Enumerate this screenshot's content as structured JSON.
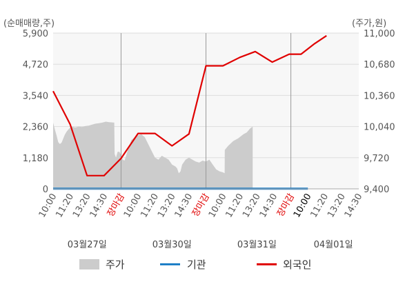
{
  "chart_data": {
    "type": "line",
    "left_axis_unit": "(순매매량,주)",
    "right_axis_unit": "(주가,원)",
    "left_ylim": [
      0,
      5900
    ],
    "right_ylim": [
      9400,
      11000
    ],
    "left_ticks": [
      "0",
      "1,180",
      "2,360",
      "3,540",
      "4,720",
      "5,900"
    ],
    "right_ticks": [
      "9,400",
      "9,720",
      "10,040",
      "10,360",
      "10,680",
      "11,000"
    ],
    "x_ticks": [
      "10:00",
      "11:20",
      "13:20",
      "14:30",
      "장마감",
      "10:00",
      "11:20",
      "13:20",
      "14:30",
      "장마감",
      "10:00",
      "11:20",
      "13:20",
      "14:30",
      "장마감",
      "10:00",
      "11:20",
      "13:20",
      "14:30"
    ],
    "x_tick_colors": [
      "#555555",
      "#555555",
      "#555555",
      "#555555",
      "#e00000",
      "#555555",
      "#555555",
      "#555555",
      "#555555",
      "#e00000",
      "#555555",
      "#555555",
      "#555555",
      "#555555",
      "#e00000",
      "#000000",
      "#555555",
      "#555555",
      "#555555"
    ],
    "dates": [
      "03월27일",
      "03월30일",
      "03월31일",
      "04월01일"
    ],
    "legend": [
      "주가",
      "기관",
      "외국인"
    ],
    "colors": {
      "price": "#cccccc",
      "institution": "#1e7fc7",
      "foreign": "#e00000",
      "divider": "#999999",
      "axis": "#aaaaaa",
      "grid": "#dddddd",
      "bg": "#f5f5f5"
    },
    "price_series": [
      [
        0,
        10080
      ],
      [
        0.1,
        10010
      ],
      [
        0.2,
        9950
      ],
      [
        0.3,
        9880
      ],
      [
        0.4,
        9860
      ],
      [
        0.5,
        9875
      ],
      [
        0.6,
        9920
      ],
      [
        0.7,
        9960
      ],
      [
        0.8,
        9990
      ],
      [
        0.9,
        10010
      ],
      [
        1.0,
        10030
      ],
      [
        1.1,
        10040
      ],
      [
        1.3,
        10030
      ],
      [
        1.5,
        10040
      ],
      [
        1.7,
        10035
      ],
      [
        1.9,
        10045
      ],
      [
        2.1,
        10050
      ],
      [
        2.3,
        10060
      ],
      [
        2.5,
        10070
      ],
      [
        2.7,
        10075
      ],
      [
        2.9,
        10080
      ],
      [
        3.1,
        10090
      ],
      [
        3.3,
        10085
      ],
      [
        3.6,
        10080
      ],
      [
        3.62,
        9760
      ],
      [
        3.7,
        9720
      ],
      [
        3.8,
        9780
      ],
      [
        3.9,
        9780
      ],
      [
        4.0,
        9750
      ],
      [
        4.1,
        9700
      ],
      [
        4.2,
        9690
      ],
      [
        4.3,
        9740
      ],
      [
        4.4,
        9800
      ],
      [
        4.6,
        9900
      ],
      [
        4.8,
        9930
      ],
      [
        5.0,
        9950
      ],
      [
        5.2,
        9960
      ],
      [
        5.4,
        9930
      ],
      [
        5.6,
        9860
      ],
      [
        5.8,
        9790
      ],
      [
        6.0,
        9720
      ],
      [
        6.2,
        9700
      ],
      [
        6.4,
        9740
      ],
      [
        6.6,
        9720
      ],
      [
        6.8,
        9700
      ],
      [
        7.0,
        9650
      ],
      [
        7.2,
        9630
      ],
      [
        7.3,
        9610
      ],
      [
        7.4,
        9560
      ],
      [
        7.5,
        9580
      ],
      [
        7.6,
        9650
      ],
      [
        7.8,
        9700
      ],
      [
        8.0,
        9720
      ],
      [
        8.2,
        9700
      ],
      [
        8.4,
        9680
      ],
      [
        8.6,
        9670
      ],
      [
        8.8,
        9690
      ],
      [
        9.0,
        9680
      ],
      [
        9.2,
        9700
      ],
      [
        9.4,
        9650
      ],
      [
        9.6,
        9600
      ],
      [
        9.8,
        9580
      ],
      [
        10.0,
        9570
      ],
      [
        10.1,
        9560
      ],
      [
        10.11,
        9800
      ],
      [
        10.3,
        9840
      ],
      [
        10.6,
        9890
      ],
      [
        10.9,
        9920
      ],
      [
        11.2,
        9960
      ],
      [
        11.4,
        9980
      ],
      [
        11.6,
        10020
      ],
      [
        11.75,
        10040
      ]
    ],
    "institution_series": [
      [
        0,
        9
      ],
      [
        15,
        9
      ]
    ],
    "foreign_series": [
      [
        0,
        3700
      ],
      [
        1.0,
        2450
      ],
      [
        2.0,
        500
      ],
      [
        3.0,
        500
      ],
      [
        4.0,
        1150
      ],
      [
        5.0,
        2100
      ],
      [
        6.0,
        2100
      ],
      [
        7.0,
        1630
      ],
      [
        8.0,
        2080
      ],
      [
        9.0,
        4660
      ],
      [
        10.0,
        4660
      ],
      [
        11.0,
        4980
      ],
      [
        11.9,
        5200
      ],
      [
        12.9,
        4800
      ],
      [
        13.9,
        5100
      ],
      [
        14.6,
        5100
      ],
      [
        15.4,
        5500
      ],
      [
        16.1,
        5800
      ]
    ]
  }
}
